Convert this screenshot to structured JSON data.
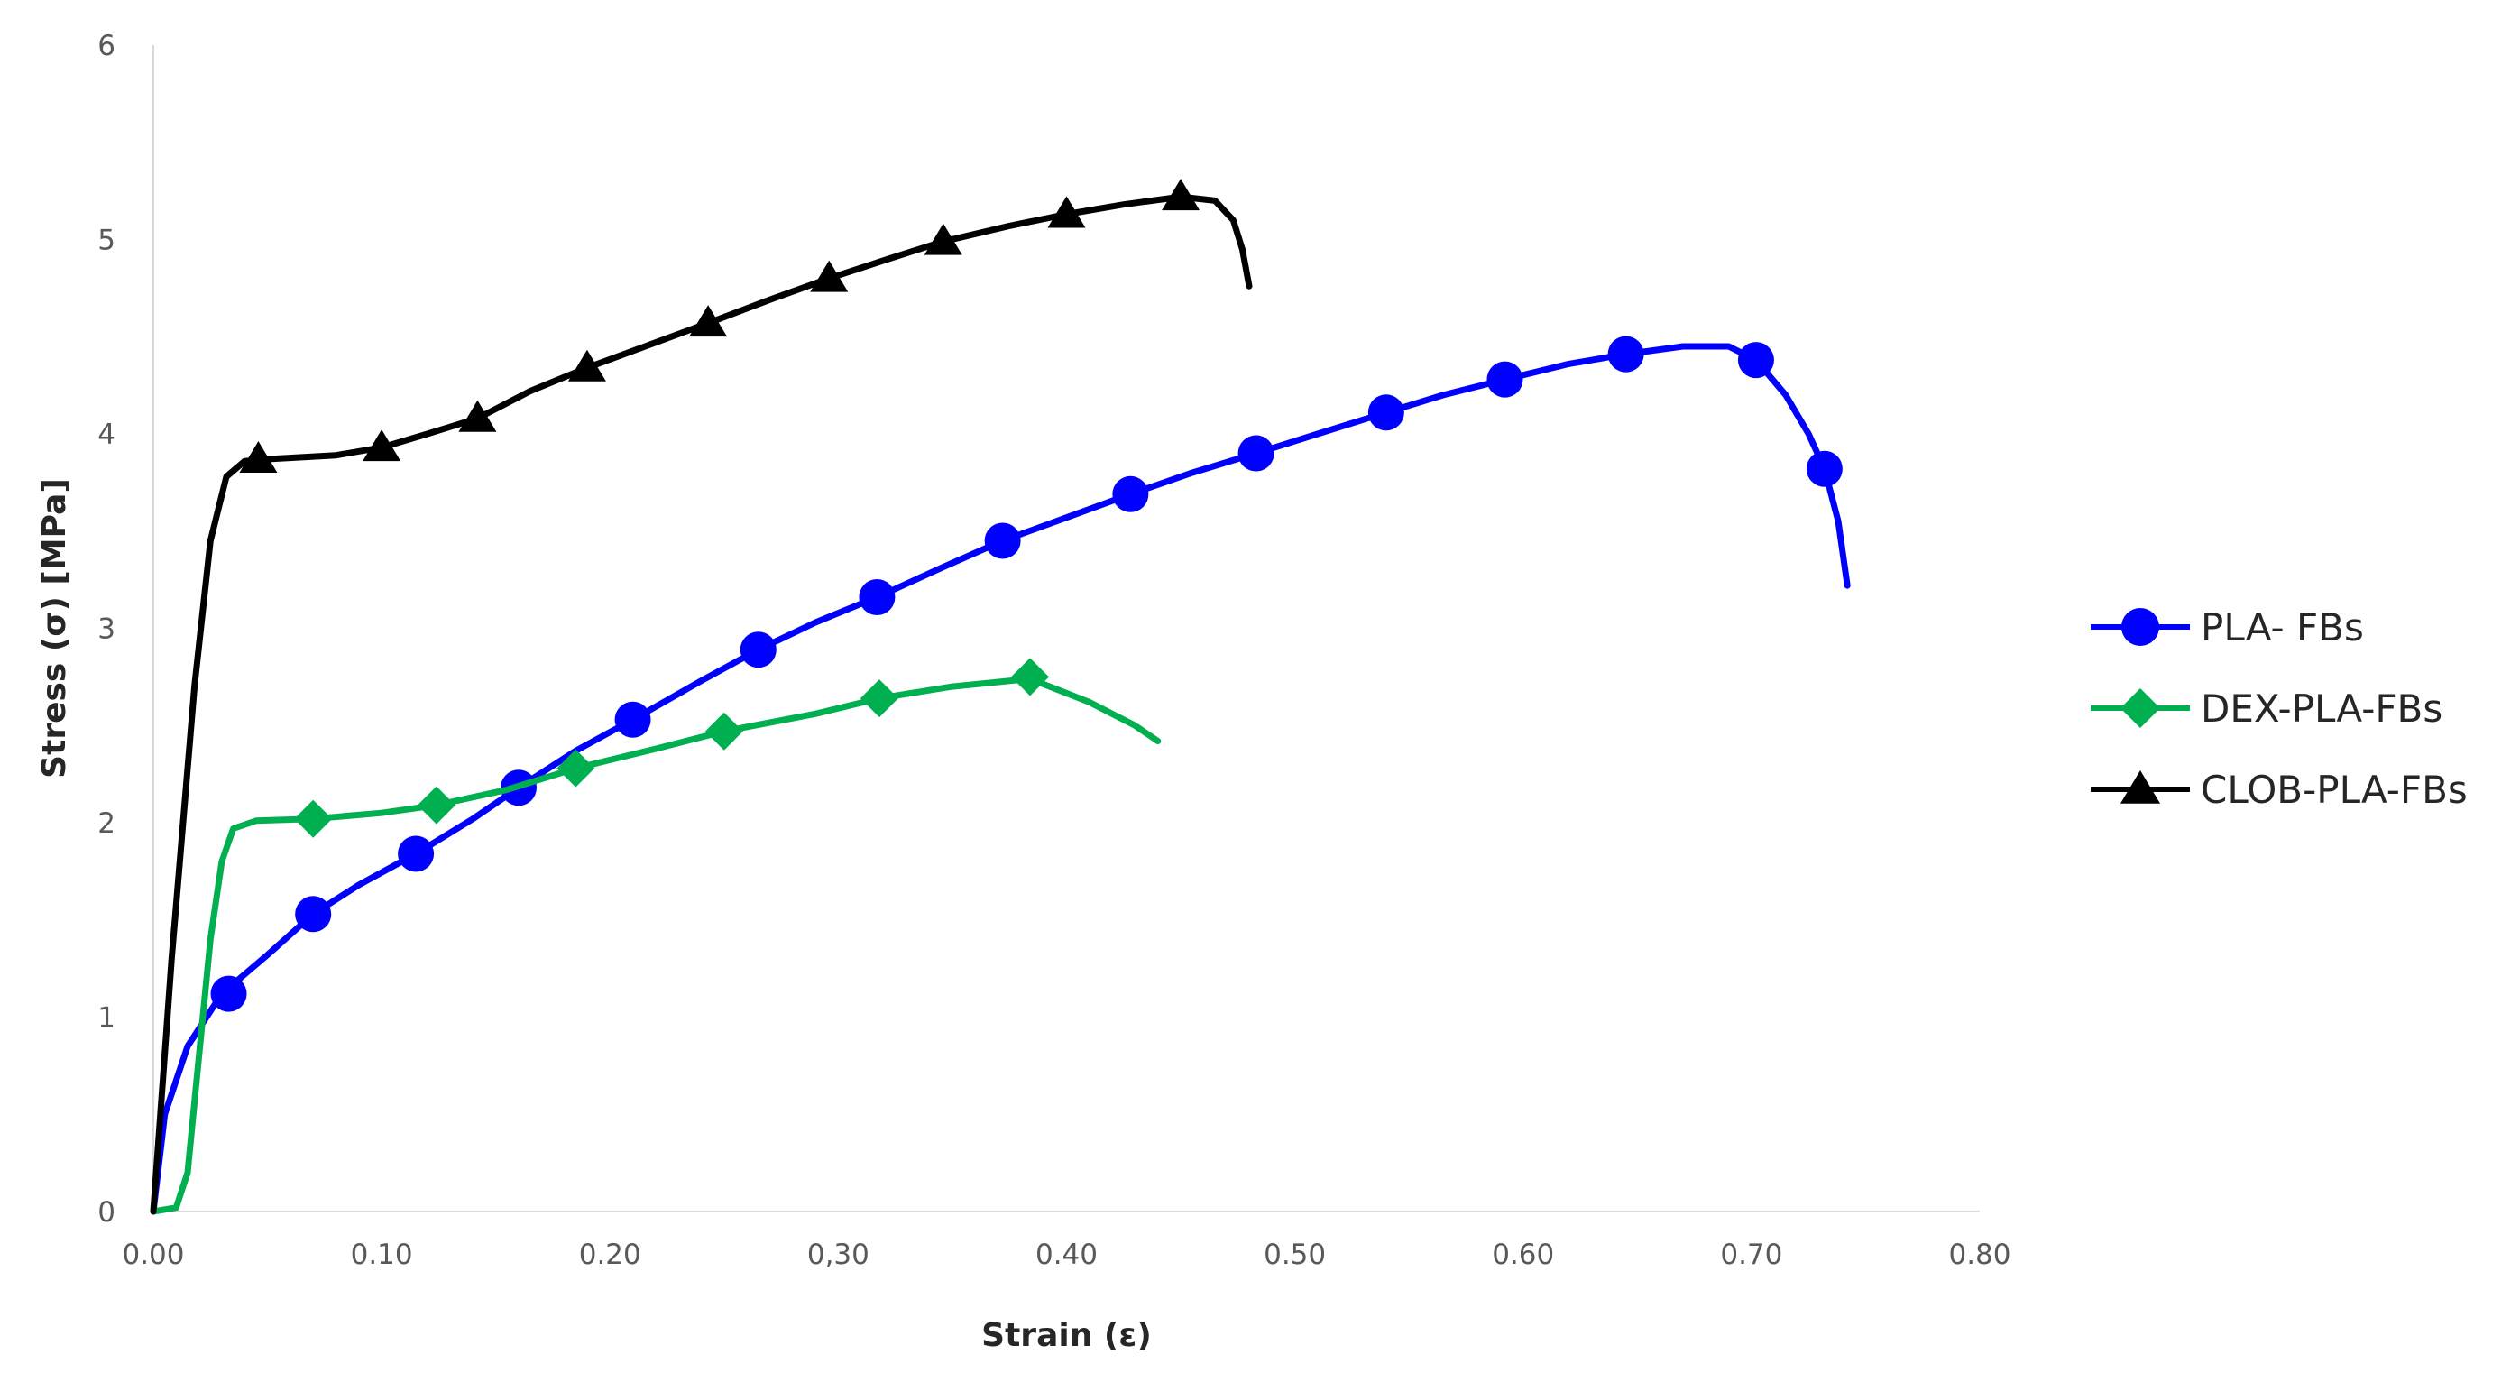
{
  "chart_data": {
    "type": "line",
    "title": "",
    "xlabel": "Strain (ε)",
    "ylabel": "Stress (σ) [MPa]",
    "xlim": [
      0,
      0.8
    ],
    "ylim": [
      0,
      6
    ],
    "x_ticks": [
      "0.00",
      "0.10",
      "0.20",
      "0,30",
      "0.40",
      "0.50",
      "0.60",
      "0.70",
      "0.80"
    ],
    "y_ticks": [
      "0",
      "1",
      "2",
      "3",
      "4",
      "5",
      "6"
    ],
    "grid": false,
    "legend_position": "right",
    "series": [
      {
        "name": "PLA- FBs",
        "color": "#0000ff",
        "marker": "circle",
        "line": [
          [
            0,
            0
          ],
          [
            0.005,
            0.5
          ],
          [
            0.015,
            0.85
          ],
          [
            0.03,
            1.12
          ],
          [
            0.05,
            1.32
          ],
          [
            0.07,
            1.53
          ],
          [
            0.09,
            1.68
          ],
          [
            0.115,
            1.84
          ],
          [
            0.14,
            2.02
          ],
          [
            0.16,
            2.18
          ],
          [
            0.185,
            2.37
          ],
          [
            0.21,
            2.53
          ],
          [
            0.24,
            2.73
          ],
          [
            0.265,
            2.89
          ],
          [
            0.29,
            3.03
          ],
          [
            0.317,
            3.16
          ],
          [
            0.345,
            3.31
          ],
          [
            0.372,
            3.45
          ],
          [
            0.4,
            3.57
          ],
          [
            0.428,
            3.69
          ],
          [
            0.455,
            3.8
          ],
          [
            0.483,
            3.9
          ],
          [
            0.51,
            4.0
          ],
          [
            0.54,
            4.11
          ],
          [
            0.565,
            4.2
          ],
          [
            0.592,
            4.28
          ],
          [
            0.62,
            4.36
          ],
          [
            0.645,
            4.41
          ],
          [
            0.67,
            4.45
          ],
          [
            0.69,
            4.45
          ],
          [
            0.702,
            4.38
          ],
          [
            0.715,
            4.2
          ],
          [
            0.725,
            4.0
          ],
          [
            0.732,
            3.82
          ],
          [
            0.738,
            3.55
          ],
          [
            0.742,
            3.22
          ]
        ],
        "markers": [
          [
            0.033,
            1.12
          ],
          [
            0.07,
            1.53
          ],
          [
            0.115,
            1.84
          ],
          [
            0.16,
            2.18
          ],
          [
            0.21,
            2.53
          ],
          [
            0.265,
            2.89
          ],
          [
            0.317,
            3.16
          ],
          [
            0.372,
            3.45
          ],
          [
            0.428,
            3.69
          ],
          [
            0.483,
            3.9
          ],
          [
            0.54,
            4.11
          ],
          [
            0.592,
            4.28
          ],
          [
            0.645,
            4.41
          ],
          [
            0.702,
            4.38
          ],
          [
            0.732,
            3.82
          ]
        ]
      },
      {
        "name": "DEX-PLA-FBs",
        "color": "#00b050",
        "marker": "diamond",
        "line": [
          [
            0,
            0
          ],
          [
            0.01,
            0.02
          ],
          [
            0.015,
            0.2
          ],
          [
            0.02,
            0.8
          ],
          [
            0.025,
            1.4
          ],
          [
            0.03,
            1.8
          ],
          [
            0.035,
            1.97
          ],
          [
            0.045,
            2.01
          ],
          [
            0.07,
            2.02
          ],
          [
            0.1,
            2.05
          ],
          [
            0.124,
            2.09
          ],
          [
            0.155,
            2.17
          ],
          [
            0.185,
            2.28
          ],
          [
            0.22,
            2.38
          ],
          [
            0.25,
            2.47
          ],
          [
            0.29,
            2.56
          ],
          [
            0.318,
            2.64
          ],
          [
            0.35,
            2.7
          ],
          [
            0.384,
            2.74
          ],
          [
            0.41,
            2.62
          ],
          [
            0.43,
            2.5
          ],
          [
            0.44,
            2.42
          ]
        ],
        "markers": [
          [
            0.07,
            2.02
          ],
          [
            0.124,
            2.09
          ],
          [
            0.185,
            2.28
          ],
          [
            0.25,
            2.47
          ],
          [
            0.318,
            2.64
          ],
          [
            0.384,
            2.75
          ]
        ]
      },
      {
        "name": "CLOB-PLA-FBs",
        "color": "#000000",
        "marker": "triangle",
        "line": [
          [
            0,
            0
          ],
          [
            0.008,
            1.3
          ],
          [
            0.018,
            2.7
          ],
          [
            0.025,
            3.45
          ],
          [
            0.032,
            3.78
          ],
          [
            0.04,
            3.86
          ],
          [
            0.05,
            3.87
          ],
          [
            0.08,
            3.89
          ],
          [
            0.1,
            3.93
          ],
          [
            0.12,
            4.0
          ],
          [
            0.142,
            4.08
          ],
          [
            0.165,
            4.22
          ],
          [
            0.19,
            4.34
          ],
          [
            0.22,
            4.47
          ],
          [
            0.243,
            4.57
          ],
          [
            0.27,
            4.69
          ],
          [
            0.296,
            4.8
          ],
          [
            0.322,
            4.9
          ],
          [
            0.346,
            4.99
          ],
          [
            0.375,
            5.07
          ],
          [
            0.4,
            5.13
          ],
          [
            0.425,
            5.18
          ],
          [
            0.45,
            5.22
          ],
          [
            0.465,
            5.2
          ],
          [
            0.473,
            5.1
          ],
          [
            0.477,
            4.95
          ],
          [
            0.48,
            4.76
          ]
        ],
        "markers": [
          [
            0.046,
            3.87
          ],
          [
            0.1,
            3.93
          ],
          [
            0.142,
            4.08
          ],
          [
            0.19,
            4.34
          ],
          [
            0.243,
            4.57
          ],
          [
            0.296,
            4.8
          ],
          [
            0.346,
            4.99
          ],
          [
            0.4,
            5.13
          ],
          [
            0.45,
            5.22
          ]
        ]
      }
    ]
  }
}
